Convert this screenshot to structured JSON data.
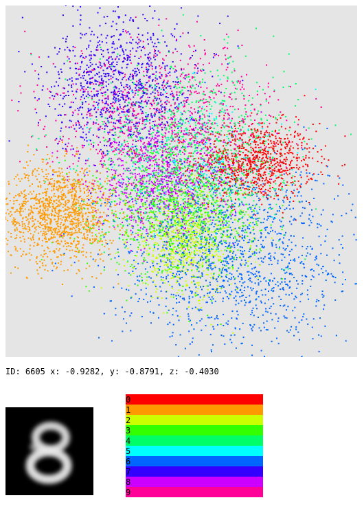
{
  "readout": {
    "id_label": "ID:",
    "id": "6605",
    "x_label": "x:",
    "x": "-0.9282",
    "y_label": "y:",
    "y": "-0.8791",
    "z_label": "z:",
    "z": "-0.4030"
  },
  "digit_preview": {
    "icon": "digit-eight-blur-icon",
    "background": "#000000"
  },
  "chart_data": {
    "type": "scatter",
    "title": "",
    "xlabel": "",
    "ylabel": "",
    "background": "#e5e5e5",
    "grid": false,
    "legend_placement": "below",
    "xlim": [
      -1,
      1
    ],
    "ylim": [
      -1,
      1
    ],
    "clusters": [
      {
        "name": "0",
        "color": "#ff0000",
        "center": [
          0.42,
          0.11
        ],
        "spread": [
          0.17,
          0.11
        ],
        "count": 900
      },
      {
        "name": "1",
        "color": "#ff9900",
        "center": [
          -0.69,
          -0.18
        ],
        "spread": [
          0.16,
          0.14
        ],
        "count": 1300
      },
      {
        "name": "2",
        "color": "#ccff00",
        "center": [
          0.03,
          -0.35
        ],
        "spread": [
          0.16,
          0.15
        ],
        "count": 700
      },
      {
        "name": "3",
        "color": "#33ff00",
        "center": [
          0.0,
          -0.18
        ],
        "spread": [
          0.22,
          0.18
        ],
        "count": 1000
      },
      {
        "name": "4",
        "color": "#00ff66",
        "center": [
          0.05,
          0.18
        ],
        "spread": [
          0.28,
          0.25
        ],
        "count": 1000
      },
      {
        "name": "5",
        "color": "#00ffff",
        "center": [
          0.08,
          0.12
        ],
        "spread": [
          0.25,
          0.22
        ],
        "count": 250
      },
      {
        "name": "6",
        "color": "#0066ff",
        "center": [
          0.28,
          -0.42
        ],
        "spread": [
          0.34,
          0.26
        ],
        "count": 1500
      },
      {
        "name": "7",
        "color": "#3300ff",
        "center": [
          -0.33,
          0.55
        ],
        "spread": [
          0.21,
          0.2
        ],
        "count": 1000
      },
      {
        "name": "8",
        "color": "#cc00ff",
        "center": [
          -0.1,
          0.0
        ],
        "spread": [
          0.2,
          0.16
        ],
        "count": 800
      },
      {
        "name": "9",
        "color": "#ff0099",
        "center": [
          -0.12,
          0.38
        ],
        "spread": [
          0.32,
          0.2
        ],
        "count": 900
      }
    ]
  }
}
